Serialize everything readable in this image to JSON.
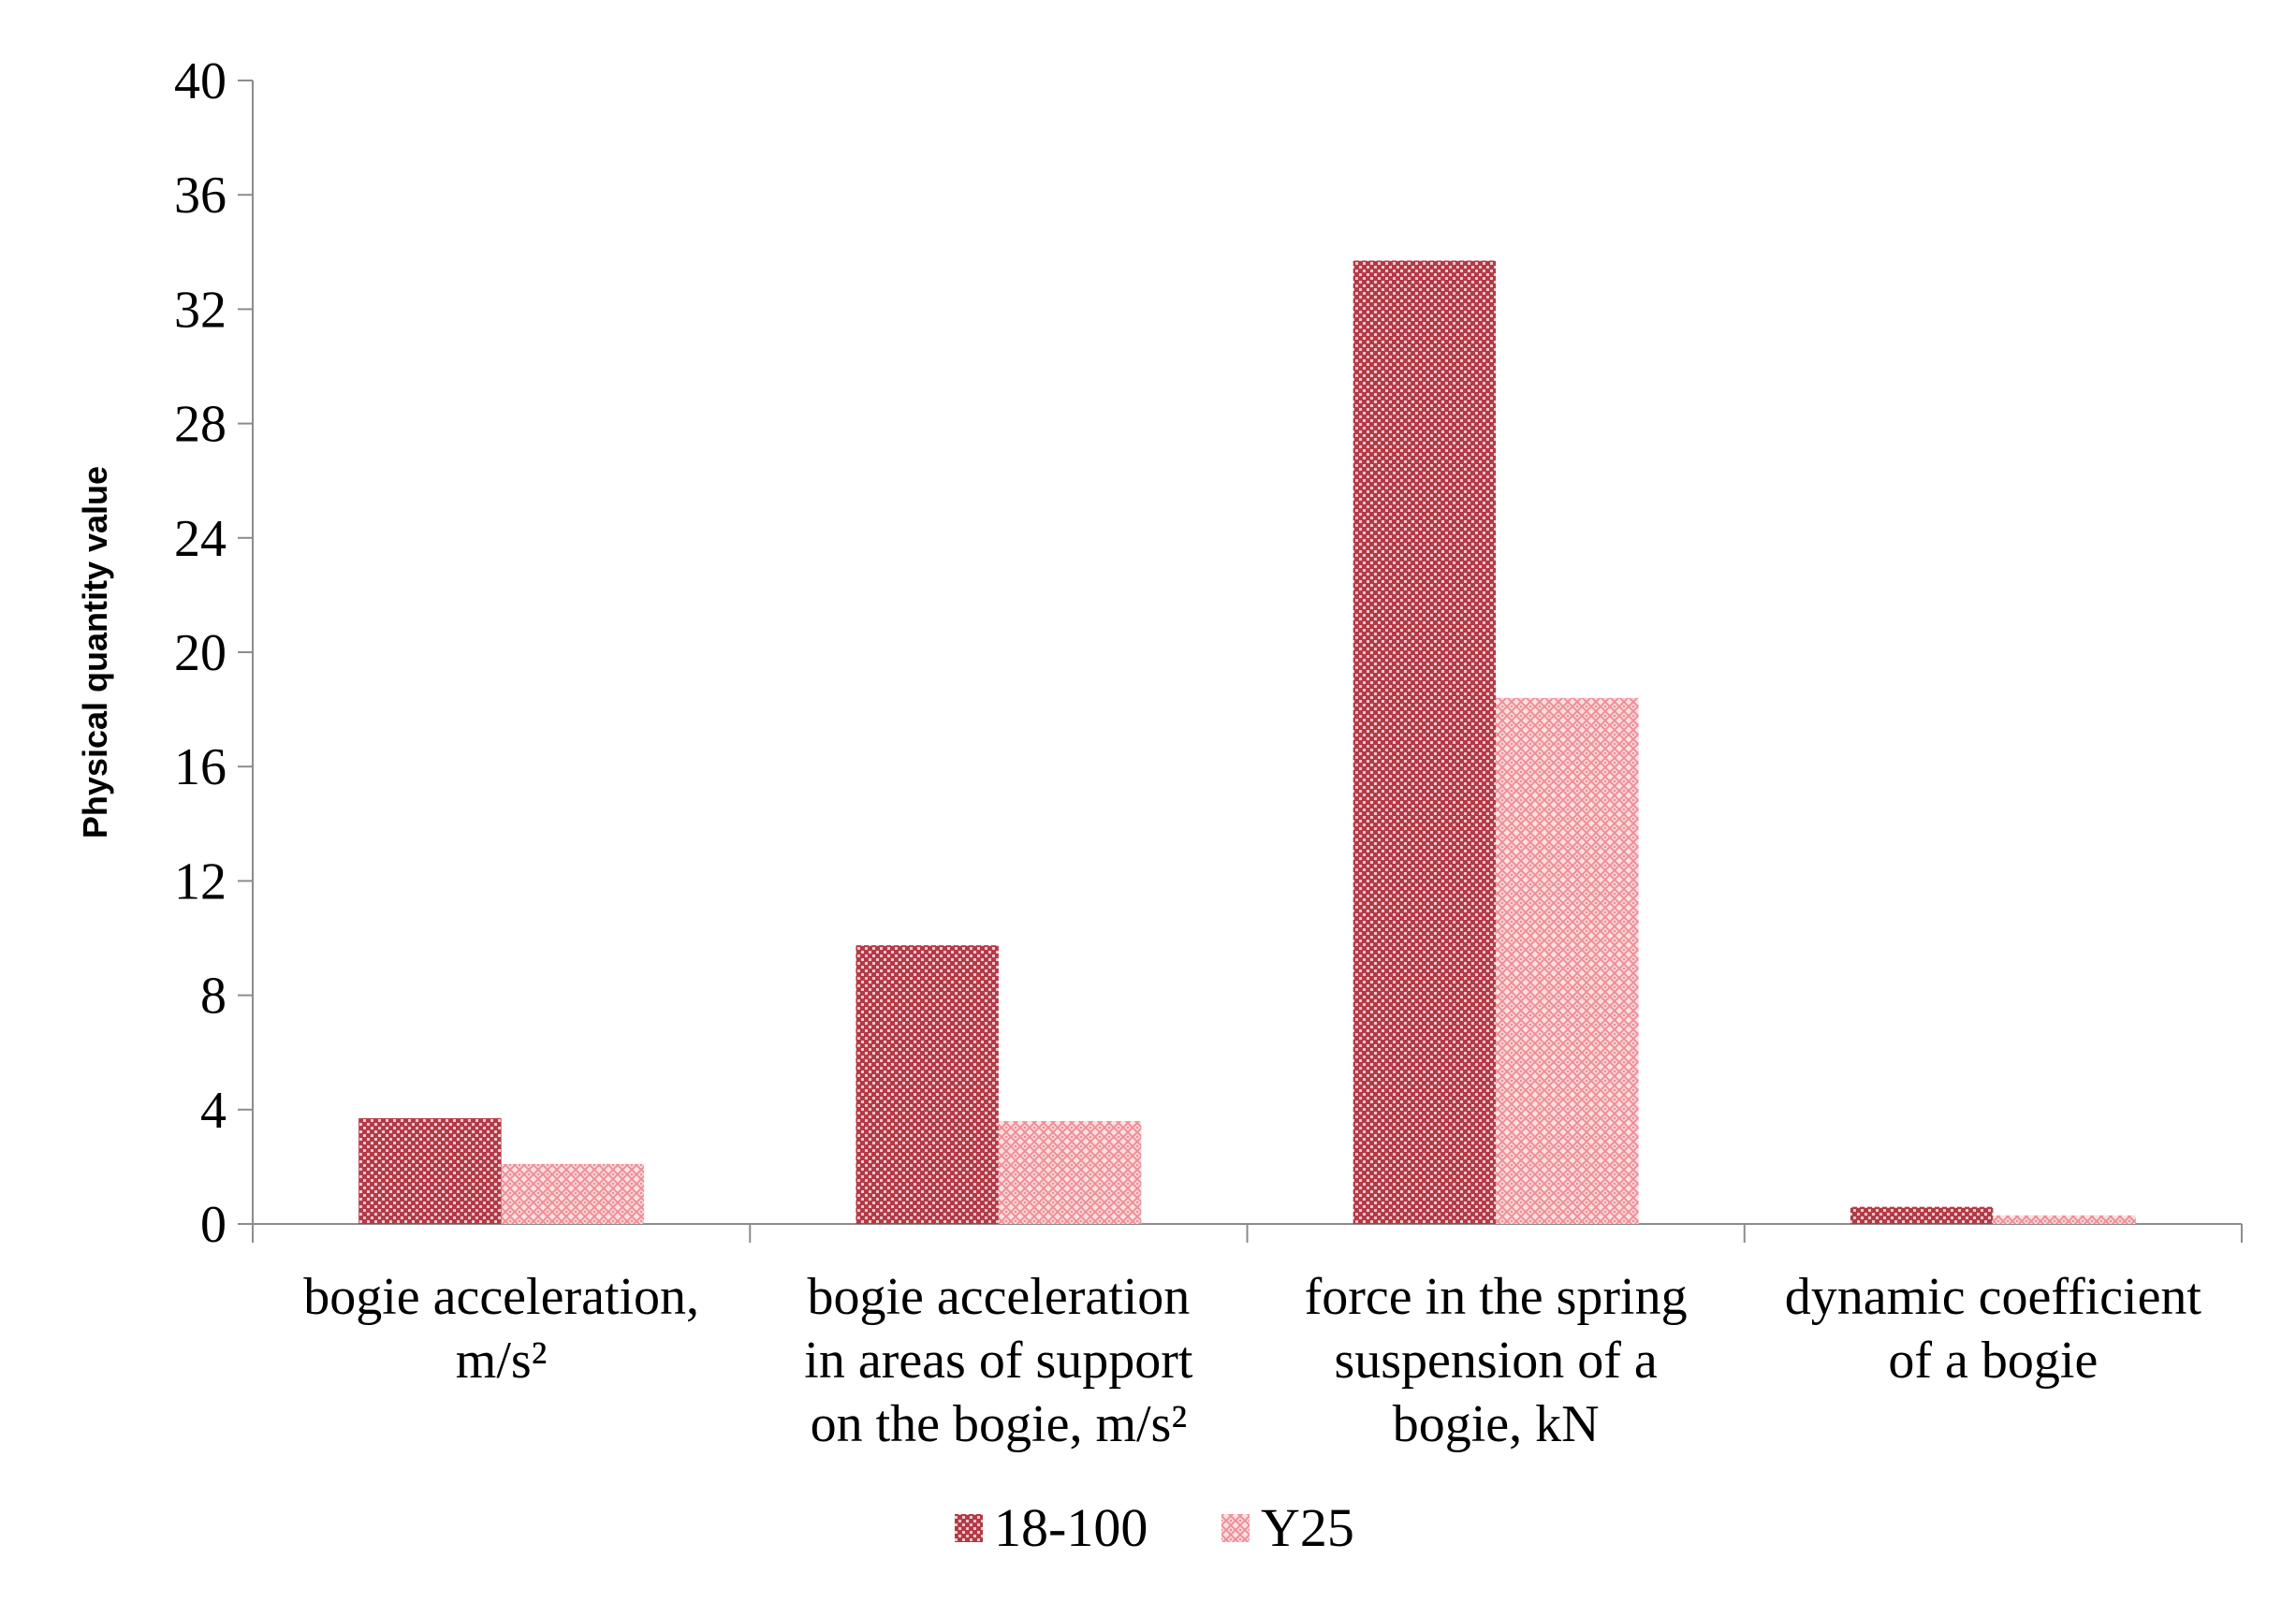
{
  "chart_data": {
    "type": "bar",
    "title": "",
    "xlabel": "",
    "ylabel": "Physical quantity value",
    "ylim": [
      0,
      40
    ],
    "yticks": [
      0,
      4,
      8,
      12,
      16,
      20,
      24,
      28,
      32,
      36,
      40
    ],
    "grid": false,
    "legend_position": "bottom",
    "categories": [
      [
        "bogie acceleration,",
        "m/s²"
      ],
      [
        "bogie acceleration",
        "in areas of support",
        "on the bogie, m/s²"
      ],
      [
        "force in the spring",
        "suspension of a",
        "bogie, kN"
      ],
      [
        "dynamic coefficient",
        "of a bogie"
      ]
    ],
    "series": [
      {
        "name": "18-100",
        "values": [
          3.7,
          9.75,
          33.7,
          0.6
        ],
        "color": "#c8525e",
        "pattern": "dense-dots"
      },
      {
        "name": "Y25",
        "values": [
          2.1,
          3.6,
          18.4,
          0.3
        ],
        "color": "#f2a3a8",
        "pattern": "lattice"
      }
    ]
  }
}
